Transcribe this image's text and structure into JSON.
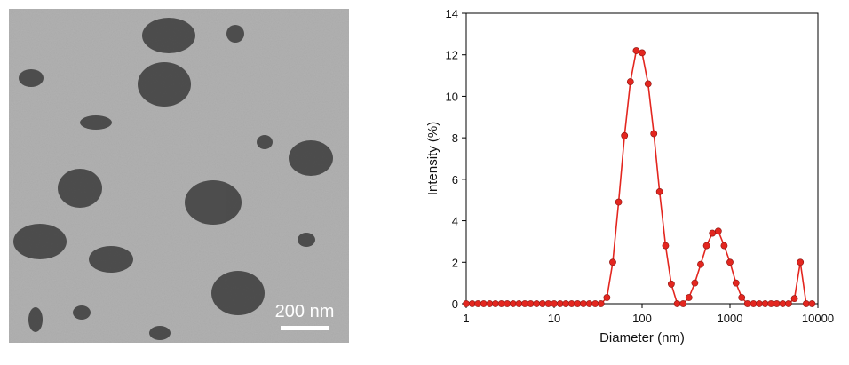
{
  "image": {
    "scale_label": "200 nm"
  },
  "chart_data": {
    "type": "line",
    "x_label": "Diameter (nm)",
    "y_label": "Intensity (%)",
    "x_scale": "log",
    "xlim": [
      1,
      10000
    ],
    "xticks": [
      1,
      10,
      100,
      1000,
      10000
    ],
    "ylim": [
      0,
      14
    ],
    "yticks": [
      0,
      2,
      4,
      6,
      8,
      10,
      12,
      14
    ],
    "series": [
      {
        "color": "#e3261f",
        "x": [
          1,
          1.17,
          1.36,
          1.58,
          1.85,
          2.15,
          2.51,
          2.93,
          3.41,
          3.98,
          4.64,
          5.41,
          6.31,
          7.36,
          8.58,
          10,
          11.7,
          13.6,
          15.8,
          18.5,
          21.5,
          25.1,
          29.3,
          34.1,
          39.8,
          46.4,
          54.1,
          63.1,
          73.6,
          85.8,
          100,
          117,
          136,
          158,
          185,
          215,
          251,
          293,
          341,
          398,
          464,
          541,
          631,
          736,
          858,
          1000,
          1170,
          1360,
          1580,
          1850,
          2150,
          2510,
          2930,
          3410,
          3980,
          4640,
          5410,
          6310,
          7360,
          8580
        ],
        "values": [
          0,
          0,
          0,
          0,
          0,
          0,
          0,
          0,
          0,
          0,
          0,
          0,
          0,
          0,
          0,
          0,
          0,
          0,
          0,
          0,
          0,
          0,
          0,
          0,
          0.3,
          2.0,
          4.9,
          8.1,
          10.7,
          12.2,
          12.1,
          10.6,
          8.2,
          5.4,
          2.8,
          0.95,
          0,
          0,
          0.3,
          1.0,
          1.9,
          2.8,
          3.4,
          3.5,
          2.8,
          2.0,
          1.0,
          0.3,
          0,
          0,
          0,
          0,
          0,
          0,
          0,
          0,
          0.25,
          2.0,
          0,
          0
        ]
      }
    ]
  }
}
